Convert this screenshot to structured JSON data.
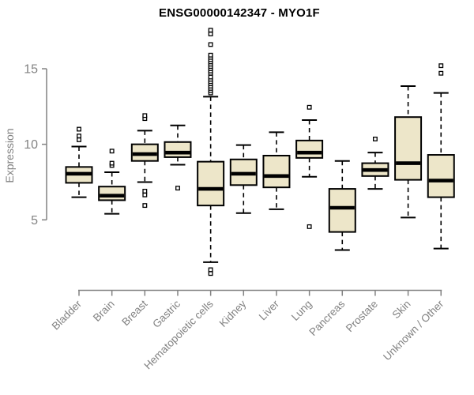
{
  "chart_data": {
    "type": "box",
    "title": "ENSG00000142347 - MYO1F",
    "ylabel": "Expression",
    "xlabel": "",
    "ylim": [
      5,
      15
    ],
    "yticks": [
      5,
      10,
      15
    ],
    "grid": false,
    "legend": "none",
    "categories": [
      "Bladder",
      "Brain",
      "Breast",
      "Gastric",
      "Hematopoietic cells",
      "Kidney",
      "Liver",
      "Lung",
      "Pancreas",
      "Prostate",
      "Skin",
      "Unknown / Other"
    ],
    "boxes": [
      {
        "label": "Bladder",
        "whisker_low": 6.5,
        "q1": 7.45,
        "median": 8.05,
        "q3": 8.5,
        "whisker_high": 9.85,
        "outliers": [
          10.3,
          10.55,
          11.0
        ]
      },
      {
        "label": "Brain",
        "whisker_low": 5.4,
        "q1": 6.3,
        "median": 6.6,
        "q3": 7.2,
        "whisker_high": 8.15,
        "outliers": [
          8.6,
          8.75,
          9.55
        ]
      },
      {
        "label": "Breast",
        "whisker_low": 7.5,
        "q1": 8.9,
        "median": 9.35,
        "q3": 10.0,
        "whisker_high": 10.9,
        "outliers": [
          5.95,
          6.65,
          6.9,
          11.7,
          11.9
        ]
      },
      {
        "label": "Gastric",
        "whisker_low": 8.65,
        "q1": 9.15,
        "median": 9.45,
        "q3": 10.15,
        "whisker_high": 11.25,
        "outliers": [
          7.1
        ]
      },
      {
        "label": "Hematopoietic cells",
        "whisker_low": 2.2,
        "q1": 5.95,
        "median": 7.05,
        "q3": 8.85,
        "whisker_high": 13.15,
        "outliers": [
          1.45,
          1.7,
          13.4,
          13.55,
          13.7,
          13.85,
          14.0,
          14.15,
          14.3,
          14.45,
          14.7,
          14.85,
          15.0,
          15.15,
          15.3,
          15.45,
          15.6,
          15.75,
          15.9,
          16.6,
          17.3,
          17.55
        ]
      },
      {
        "label": "Kidney",
        "whisker_low": 5.45,
        "q1": 7.3,
        "median": 8.05,
        "q3": 9.0,
        "whisker_high": 9.95,
        "outliers": []
      },
      {
        "label": "Liver",
        "whisker_low": 5.7,
        "q1": 7.15,
        "median": 7.9,
        "q3": 9.25,
        "whisker_high": 10.8,
        "outliers": []
      },
      {
        "label": "Lung",
        "whisker_low": 7.85,
        "q1": 9.1,
        "median": 9.45,
        "q3": 10.25,
        "whisker_high": 11.6,
        "outliers": [
          4.55,
          12.45
        ]
      },
      {
        "label": "Pancreas",
        "whisker_low": 3.0,
        "q1": 4.2,
        "median": 5.8,
        "q3": 7.05,
        "whisker_high": 8.9,
        "outliers": []
      },
      {
        "label": "Prostate",
        "whisker_low": 7.05,
        "q1": 7.9,
        "median": 8.3,
        "q3": 8.75,
        "whisker_high": 9.45,
        "outliers": [
          10.35
        ]
      },
      {
        "label": "Skin",
        "whisker_low": 5.15,
        "q1": 7.65,
        "median": 8.75,
        "q3": 11.8,
        "whisker_high": 13.85,
        "outliers": []
      },
      {
        "label": "Unknown / Other",
        "whisker_low": 3.1,
        "q1": 6.5,
        "median": 7.6,
        "q3": 9.3,
        "whisker_high": 13.4,
        "outliers": [
          14.7,
          15.2
        ]
      }
    ],
    "colors": {
      "box_fill": "#EDE6C9",
      "box_border": "#000000",
      "median": "#000000",
      "whisker": "#000000",
      "outlier_stroke": "#000000",
      "outlier_fill": "#ffffff",
      "axis": "#828282",
      "tick_label": "#828282",
      "title": "#000000"
    }
  }
}
